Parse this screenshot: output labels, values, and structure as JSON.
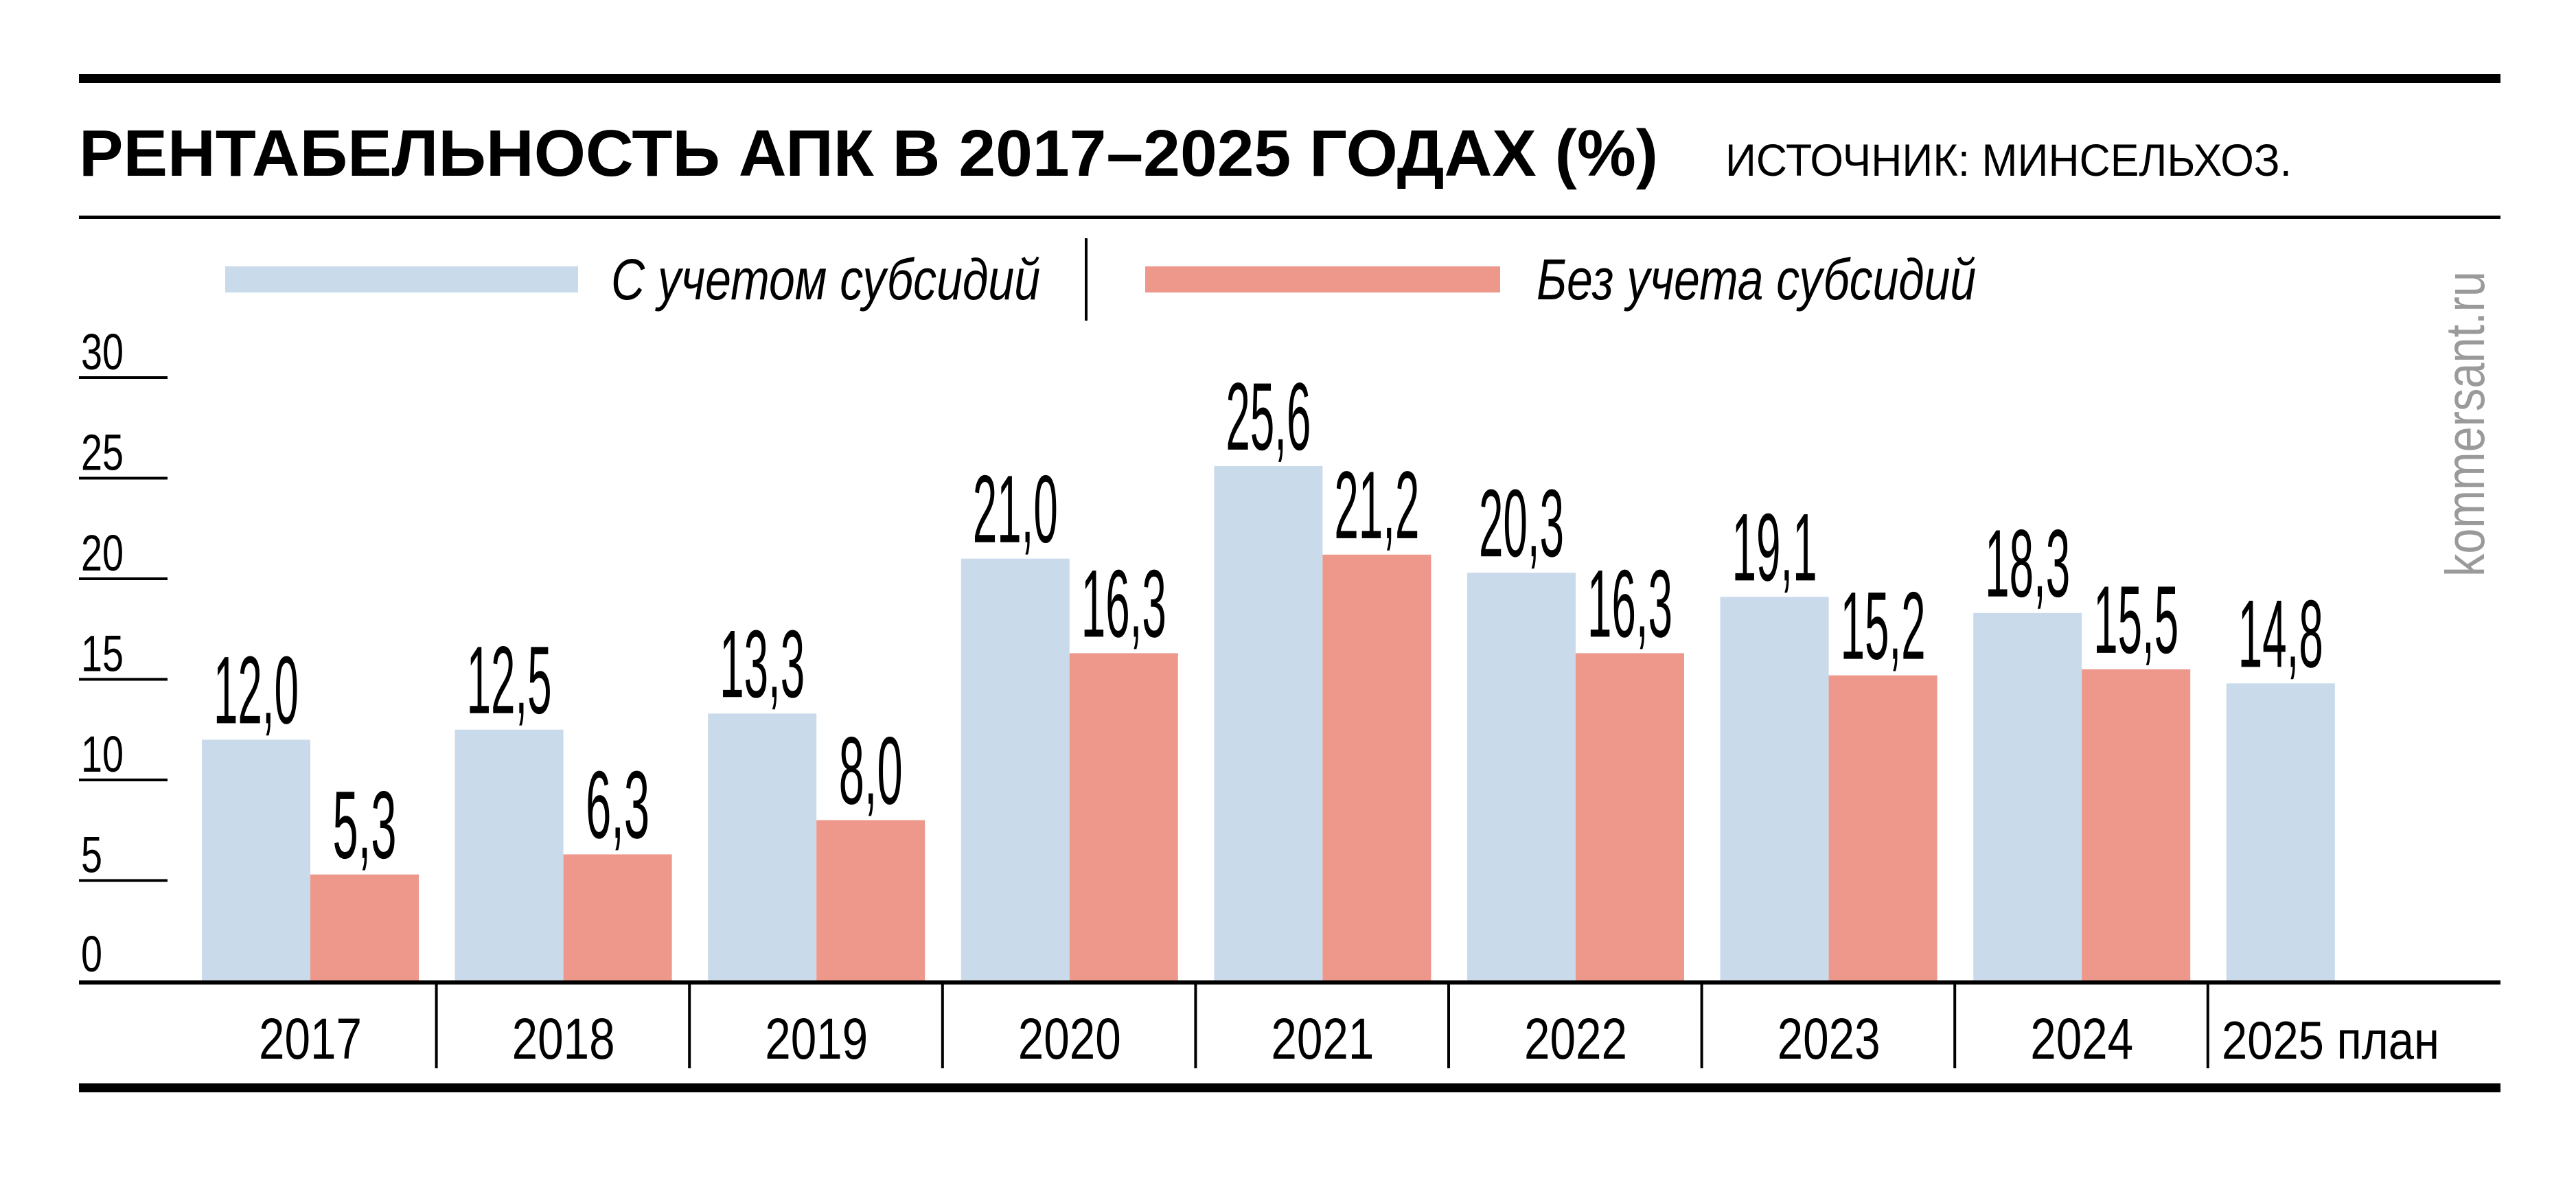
{
  "title": "РЕНТАБЕЛЬНОСТЬ АПК В 2017–2025 ГОДАХ (%)",
  "source": "ИСТОЧНИК: МИНСЕЛЬХОЗ.",
  "watermark": "kommersant.ru",
  "colors": {
    "with_subsidies": "#c9daeb",
    "without_subsidies": "#ee978b",
    "ink": "#000000",
    "watermark": "#9a9a9a"
  },
  "chart_data": {
    "type": "bar",
    "title": "РЕНТАБЕЛЬНОСТЬ АПК В 2017–2025 ГОДАХ (%)",
    "xlabel": "",
    "ylabel": "",
    "ylim": [
      0,
      30
    ],
    "yticks": [
      "0",
      "5",
      "10",
      "15",
      "20",
      "25",
      "30"
    ],
    "grid": false,
    "legend_position": "top",
    "categories": [
      "2017",
      "2018",
      "2019",
      "2020",
      "2021",
      "2022",
      "2023",
      "2024",
      "2025 план"
    ],
    "series": [
      {
        "name": "С учетом субсидий",
        "values": [
          12.0,
          12.5,
          13.3,
          21.0,
          25.6,
          20.3,
          19.1,
          18.3,
          14.8
        ],
        "labels": [
          "12,0",
          "12,5",
          "13,3",
          "21,0",
          "25,6",
          "20,3",
          "19,1",
          "18,3",
          "14,8"
        ]
      },
      {
        "name": "Без учета субсидий",
        "values": [
          5.3,
          6.3,
          8.0,
          16.3,
          21.2,
          16.3,
          15.2,
          15.5,
          null
        ],
        "labels": [
          "5,3",
          "6,3",
          "8,0",
          "16,3",
          "21,2",
          "16,3",
          "15,2",
          "15,5",
          null
        ]
      }
    ]
  }
}
